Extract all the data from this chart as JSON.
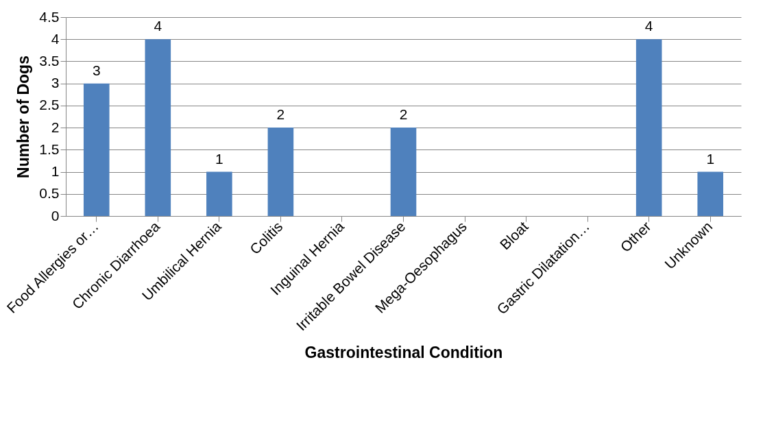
{
  "chart_data": {
    "type": "bar",
    "categories": [
      "Food Allergies or…",
      "Chronic Diarrhoea",
      "Umbilical Hernia",
      "Colitis",
      "Inguinal Hernia",
      "Irritable Bowel Disease",
      "Mega-Oesophagus",
      "Bloat",
      "Gastric Dilatation…",
      "Other",
      "Unknown"
    ],
    "values": [
      3,
      4,
      1,
      2,
      0,
      2,
      0,
      0,
      0,
      4,
      1
    ],
    "value_labels": [
      "3",
      "4",
      "1",
      "2",
      null,
      "2",
      null,
      null,
      null,
      "4",
      "1"
    ],
    "color": "#4f81bd",
    "xlabel": "Gastrointestinal Condition",
    "ylabel": "Number of Dogs",
    "ylim": [
      0,
      4.5
    ],
    "yticks": [
      0,
      0.5,
      1,
      1.5,
      2,
      2.5,
      3,
      3.5,
      4,
      4.5
    ],
    "grid": "y"
  }
}
